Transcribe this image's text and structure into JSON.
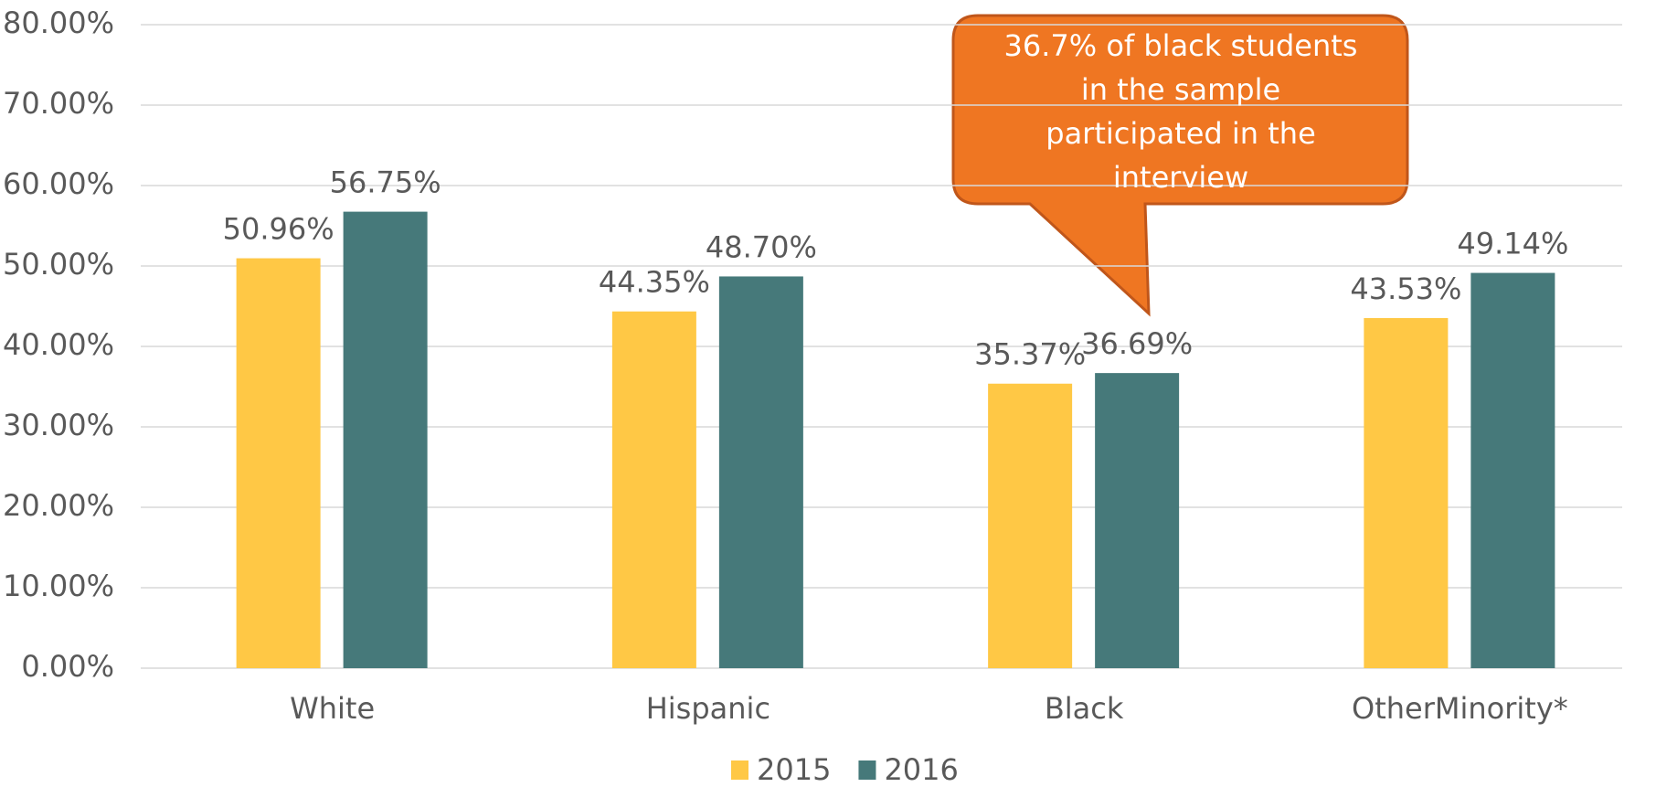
{
  "chart_data": {
    "type": "bar",
    "categories": [
      "White",
      "Hispanic",
      "Black",
      "OtherMinority*"
    ],
    "series": [
      {
        "name": "2015",
        "color": "#ffc845",
        "values": [
          50.96,
          44.35,
          35.37,
          43.53
        ],
        "value_labels": [
          "50.96%",
          "44.35%",
          "35.37%",
          "43.53%"
        ]
      },
      {
        "name": "2016",
        "color": "#46797a",
        "values": [
          56.75,
          48.7,
          36.69,
          49.14
        ],
        "value_labels": [
          "56.75%",
          "48.70%",
          "36.69%",
          "49.14%"
        ]
      }
    ],
    "ylim": [
      0,
      80
    ],
    "yticks": [
      {
        "value": 0,
        "label": "0.00%"
      },
      {
        "value": 10,
        "label": "10.00%"
      },
      {
        "value": 20,
        "label": "20.00%"
      },
      {
        "value": 30,
        "label": "30.00%"
      },
      {
        "value": 40,
        "label": "40.00%"
      },
      {
        "value": 50,
        "label": "50.00%"
      },
      {
        "value": 60,
        "label": "60.00%"
      },
      {
        "value": 70,
        "label": "70.00%"
      },
      {
        "value": 80,
        "label": "80.00%"
      }
    ],
    "grid": true,
    "legend": "bottom",
    "annotation": [
      "36.7%  of black students",
      "in the sample",
      "participated in the",
      "interview"
    ]
  }
}
